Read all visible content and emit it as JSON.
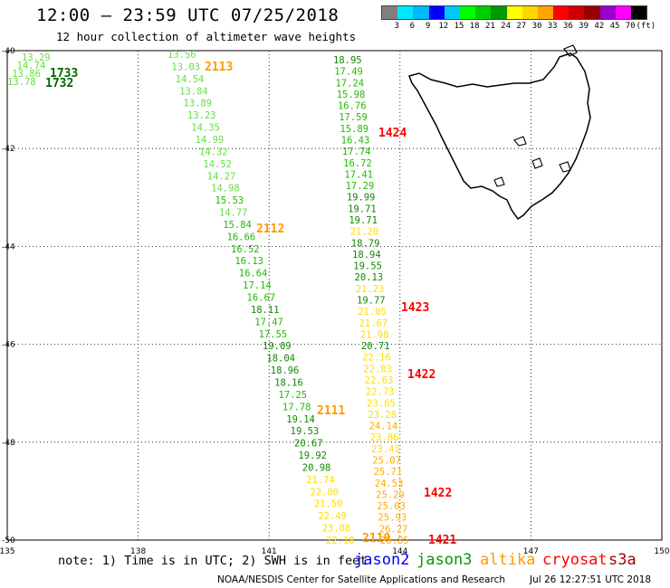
{
  "header": {
    "title": "12:00 — 23:59 UTC 07/25/2018",
    "subtitle": "12 hour collection of altimeter wave heights"
  },
  "colorbar": {
    "labels": [
      "3",
      "6",
      "9",
      "12",
      "15",
      "18",
      "21",
      "24",
      "27",
      "30",
      "33",
      "36",
      "39",
      "42",
      "45",
      "70",
      "(ft)"
    ],
    "colors": [
      "#808080",
      "#00e8ff",
      "#00b8ff",
      "#0000ff",
      "#00c8ff",
      "#00ff00",
      "#00cc00",
      "#009900",
      "#ffff00",
      "#ffd700",
      "#ffa500",
      "#ff0000",
      "#cc0000",
      "#990000",
      "#9900cc",
      "#ff00ff",
      "#000000"
    ]
  },
  "map": {
    "lon_ticks": [
      "135",
      "138",
      "141",
      "144",
      "147",
      "150"
    ],
    "lat_ticks": [
      "-40",
      "-42",
      "-44",
      "-46",
      "-48",
      "-50"
    ],
    "lon_range": [
      135,
      150
    ],
    "lat_range": [
      -40,
      -50
    ]
  },
  "legend": {
    "note": "note: 1) Time is in UTC; 2) SWH is in feet",
    "satellites": [
      {
        "name": "jason2",
        "color": "#0000ff"
      },
      {
        "name": "jason3",
        "color": "#009900"
      },
      {
        "name": "altika",
        "color": "#ff9900"
      },
      {
        "name": "cryosat",
        "color": "#ff0000"
      },
      {
        "name": "s3a",
        "color": "#990000"
      }
    ]
  },
  "footer": {
    "credit": "NOAA/NESDIS Center for Satellite Applications and Research",
    "timestamp": "Jul 26 12:27:51 UTC 2018"
  },
  "tracks": {
    "left": [
      "13.29",
      "14.74",
      "13.86",
      "13.78"
    ],
    "middle": [
      "13.56",
      "13.03",
      "14.54",
      "13.84",
      "13.89",
      "13.23",
      "14.35",
      "14.99",
      "14.32",
      "14.52",
      "14.27",
      "14.98",
      "15.53",
      "14.77",
      "15.84",
      "16.66",
      "16.52",
      "16.13",
      "16.64",
      "17.14",
      "16.67",
      "18.11",
      "17.47",
      "17.55",
      "19.09",
      "18.04",
      "18.96",
      "18.16",
      "17.25",
      "17.78",
      "19.14",
      "19.53",
      "20.67",
      "19.92",
      "20.98",
      "21.74",
      "22.00",
      "21.59",
      "22.49",
      "23.08",
      "22.18"
    ],
    "right": [
      "18.95",
      "17.49",
      "17.24",
      "15.98",
      "16.76",
      "17.59",
      "15.89",
      "16.43",
      "17.74",
      "16.72",
      "17.41",
      "17.29",
      "19.99",
      "19.71",
      "19.71",
      "21.20",
      "18.79",
      "18.94",
      "19.55",
      "20.13",
      "21.23",
      "19.77",
      "21.05",
      "21.67",
      "21.98",
      "20.71",
      "22.16",
      "22.83",
      "22.63",
      "22.73",
      "23.65",
      "23.28",
      "24.14",
      "23.86",
      "23.41",
      "25.07",
      "25.71",
      "24.53",
      "25.29",
      "25.03",
      "25.93",
      "26.27",
      "25.85"
    ],
    "times": [
      {
        "label": "1733",
        "color": "#006600"
      },
      {
        "label": "1732",
        "color": "#006600"
      },
      {
        "label": "2113",
        "color": "#ff9900"
      },
      {
        "label": "2112",
        "color": "#ff9900"
      },
      {
        "label": "2111",
        "color": "#ff9900"
      },
      {
        "label": "2110",
        "color": "#ff9900"
      },
      {
        "label": "1424",
        "color": "#ff0000"
      },
      {
        "label": "1423",
        "color": "#ff0000"
      },
      {
        "label": "1422",
        "color": "#ff0000"
      },
      {
        "label": "1422",
        "color": "#ff0000"
      },
      {
        "label": "1421",
        "color": "#ff0000"
      }
    ]
  }
}
